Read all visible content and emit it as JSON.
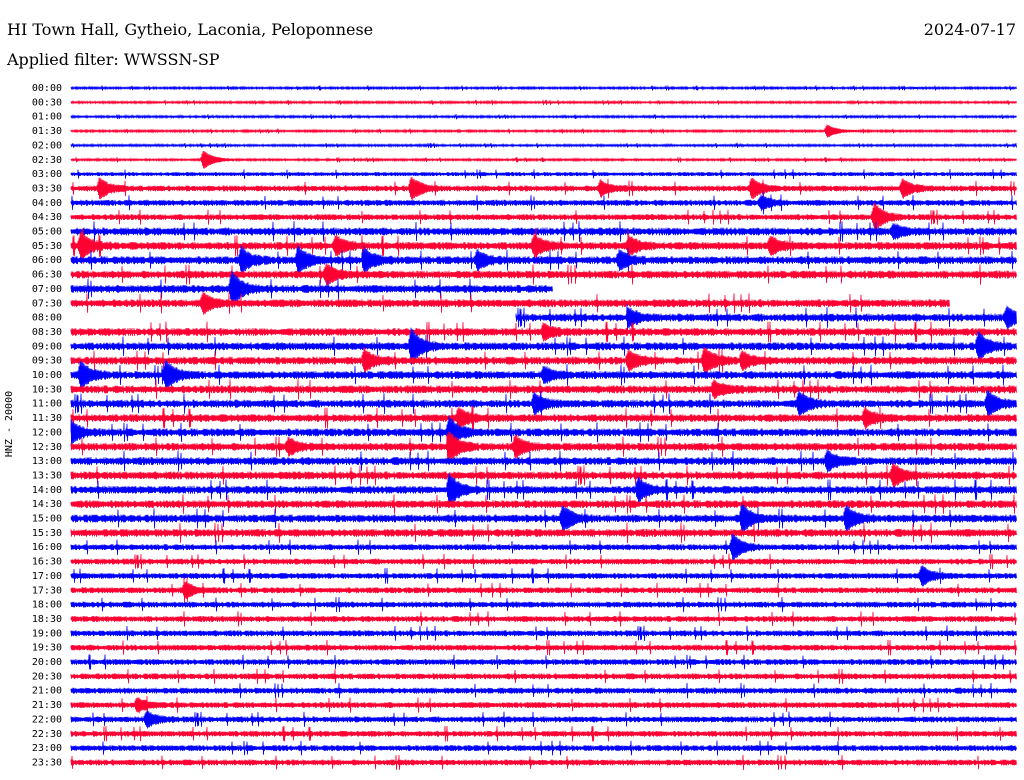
{
  "header": {
    "station": "HI Town Hall, Gytheio, Laconia, Peloponnese",
    "date": "2024-07-17",
    "filter": "Applied filter: WWSSN-SP"
  },
  "chart_data": {
    "type": "line",
    "title": "HI Town Hall, Gytheio, Laconia, Peloponnese",
    "ylabel": "HNZ - 20000",
    "colors": [
      "#0000ff",
      "#ff0033"
    ],
    "row_labels": [
      "00:00",
      "00:30",
      "01:00",
      "01:30",
      "02:00",
      "02:30",
      "03:00",
      "03:30",
      "04:00",
      "04:30",
      "05:00",
      "05:30",
      "06:00",
      "06:30",
      "07:00",
      "07:30",
      "08:00",
      "08:30",
      "09:00",
      "09:30",
      "10:00",
      "10:30",
      "11:00",
      "11:30",
      "12:00",
      "12:30",
      "13:00",
      "13:30",
      "14:00",
      "14:30",
      "15:00",
      "15:30",
      "16:00",
      "16:30",
      "17:00",
      "17:30",
      "18:00",
      "18:30",
      "19:00",
      "19:30",
      "20:00",
      "20:30",
      "21:00",
      "21:30",
      "22:00",
      "22:30",
      "23:00",
      "23:30"
    ],
    "noise_level": [
      1,
      1,
      1,
      1,
      1,
      1,
      2,
      3,
      3,
      3,
      4,
      4,
      4,
      4,
      4,
      4,
      4,
      4,
      4,
      4,
      4,
      4,
      4,
      4,
      4,
      4,
      4,
      4,
      4,
      4,
      4,
      4,
      3,
      3,
      3,
      3,
      3,
      3,
      3,
      3,
      3,
      3,
      3,
      3,
      3,
      3,
      3,
      3
    ],
    "events": [
      {
        "row": 3,
        "t": 0.8,
        "amp": 6
      },
      {
        "row": 5,
        "t": 0.14,
        "amp": 9
      },
      {
        "row": 7,
        "t": 0.03,
        "amp": 9
      },
      {
        "row": 7,
        "t": 0.36,
        "amp": 10
      },
      {
        "row": 7,
        "t": 0.56,
        "amp": 7
      },
      {
        "row": 7,
        "t": 0.72,
        "amp": 9
      },
      {
        "row": 7,
        "t": 0.88,
        "amp": 8
      },
      {
        "row": 8,
        "t": 0.73,
        "amp": 6
      },
      {
        "row": 9,
        "t": 0.85,
        "amp": 13
      },
      {
        "row": 10,
        "t": 0.87,
        "amp": 6
      },
      {
        "row": 11,
        "t": 0.01,
        "amp": 12
      },
      {
        "row": 11,
        "t": 0.28,
        "amp": 8
      },
      {
        "row": 11,
        "t": 0.49,
        "amp": 10
      },
      {
        "row": 11,
        "t": 0.59,
        "amp": 8
      },
      {
        "row": 11,
        "t": 0.74,
        "amp": 8
      },
      {
        "row": 12,
        "t": 0.18,
        "amp": 11
      },
      {
        "row": 12,
        "t": 0.24,
        "amp": 12
      },
      {
        "row": 12,
        "t": 0.31,
        "amp": 11
      },
      {
        "row": 12,
        "t": 0.43,
        "amp": 8
      },
      {
        "row": 12,
        "t": 0.58,
        "amp": 8
      },
      {
        "row": 13,
        "t": 0.27,
        "amp": 9
      },
      {
        "row": 14,
        "t": 0.17,
        "amp": 16
      },
      {
        "row": 15,
        "t": 0.14,
        "amp": 9
      },
      {
        "row": 16,
        "t": 0.59,
        "amp": 8
      },
      {
        "row": 16,
        "t": 0.99,
        "amp": 9
      },
      {
        "row": 17,
        "t": 0.5,
        "amp": 7
      },
      {
        "row": 18,
        "t": 0.36,
        "amp": 16
      },
      {
        "row": 18,
        "t": 0.96,
        "amp": 12
      },
      {
        "row": 19,
        "t": 0.31,
        "amp": 10
      },
      {
        "row": 19,
        "t": 0.59,
        "amp": 9
      },
      {
        "row": 19,
        "t": 0.67,
        "amp": 12
      },
      {
        "row": 19,
        "t": 0.71,
        "amp": 8
      },
      {
        "row": 20,
        "t": 0.01,
        "amp": 12
      },
      {
        "row": 20,
        "t": 0.1,
        "amp": 13
      },
      {
        "row": 20,
        "t": 0.5,
        "amp": 7
      },
      {
        "row": 21,
        "t": 0.68,
        "amp": 7
      },
      {
        "row": 22,
        "t": 0.49,
        "amp": 9
      },
      {
        "row": 22,
        "t": 0.77,
        "amp": 11
      },
      {
        "row": 22,
        "t": 0.97,
        "amp": 11
      },
      {
        "row": 23,
        "t": 0.84,
        "amp": 8
      },
      {
        "row": 23,
        "t": 0.41,
        "amp": 9
      },
      {
        "row": 24,
        "t": 0.0,
        "amp": 9
      },
      {
        "row": 24,
        "t": 0.4,
        "amp": 14
      },
      {
        "row": 25,
        "t": 0.4,
        "amp": 13
      },
      {
        "row": 25,
        "t": 0.47,
        "amp": 10
      },
      {
        "row": 25,
        "t": 0.23,
        "amp": 7
      },
      {
        "row": 26,
        "t": 0.8,
        "amp": 9
      },
      {
        "row": 27,
        "t": 0.87,
        "amp": 10
      },
      {
        "row": 28,
        "t": 0.4,
        "amp": 14
      },
      {
        "row": 28,
        "t": 0.6,
        "amp": 10
      },
      {
        "row": 30,
        "t": 0.52,
        "amp": 11
      },
      {
        "row": 30,
        "t": 0.71,
        "amp": 13
      },
      {
        "row": 30,
        "t": 0.82,
        "amp": 11
      },
      {
        "row": 32,
        "t": 0.7,
        "amp": 12
      },
      {
        "row": 34,
        "t": 0.9,
        "amp": 9
      },
      {
        "row": 35,
        "t": 0.12,
        "amp": 7
      },
      {
        "row": 43,
        "t": 0.07,
        "amp": 6
      },
      {
        "row": 44,
        "t": 0.08,
        "amp": 7
      }
    ],
    "gaps": [
      {
        "row": 14,
        "from": 0.51,
        "to": 1.0
      },
      {
        "row": 15,
        "from": 0.93,
        "to": 1.0
      },
      {
        "row": 16,
        "from": 0.0,
        "to": 0.47
      }
    ]
  }
}
